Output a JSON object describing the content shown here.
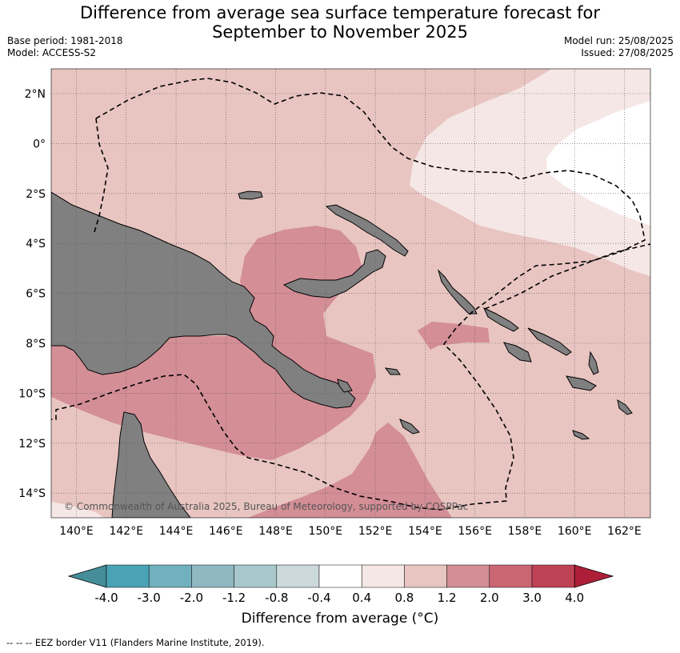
{
  "title_line1": "Difference from average sea surface temperature forecast for",
  "title_line2": "September to November 2025",
  "base_period": "Base period: 1981-2018",
  "model": "Model: ACCESS-S2",
  "model_run": "Model run: 25/08/2025",
  "issued": "Issued: 27/08/2025",
  "copyright": "© Commonwealth of Australia 2025, Bureau of Meteorology, supported by COSPPac",
  "footer": "--  --  -- EEZ border V11 (Flanders Marine Institute, 2019).",
  "colorbar": {
    "label": "Difference from average (°C)",
    "ticks": [
      "-4.0",
      "-3.0",
      "-2.0",
      "-1.2",
      "-0.8",
      "-0.4",
      "0.4",
      "0.8",
      "1.2",
      "2.0",
      "3.0",
      "4.0"
    ],
    "colors": [
      "#458d99",
      "#4aa3b5",
      "#71b0bf",
      "#8fb8c3",
      "#a9c8cd",
      "#ccd9da",
      "#ffffff",
      "#f5e7e5",
      "#e8c5c1",
      "#d48e96",
      "#cb6673",
      "#bd4254",
      "#ad1f38"
    ]
  },
  "map": {
    "lon_ticks": [
      "140°E",
      "142°E",
      "144°E",
      "146°E",
      "148°E",
      "150°E",
      "152°E",
      "154°E",
      "156°E",
      "158°E",
      "160°E",
      "162°E"
    ],
    "lat_ticks": [
      "2°N",
      "0°",
      "2°S",
      "4°S",
      "6°S",
      "8°S",
      "10°S",
      "12°S",
      "14°S"
    ],
    "land_color": "#808080",
    "colors": {
      "band_08_12": "#e8c5c1",
      "band_04_08": "#f5e7e5",
      "band_neutral": "#ffffff",
      "band_12_20": "#d48e96"
    }
  }
}
